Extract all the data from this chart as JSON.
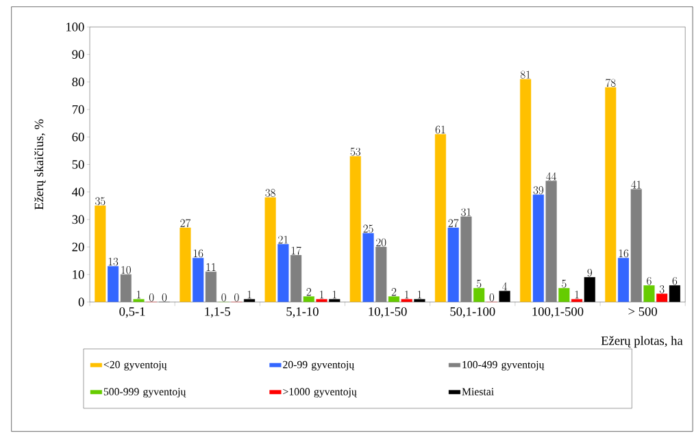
{
  "chart_data": {
    "type": "bar",
    "xlabel": "Ežerų plotas, ha",
    "ylabel": "Ežerų skaičius, %",
    "categories": [
      "0,5-1",
      "1,1-5",
      "5,1-10",
      "10,1-50",
      "50,1-100",
      "100,1-500",
      "> 500"
    ],
    "series": [
      {
        "name": "<20 gyventojų",
        "color": "#ffc000",
        "values": [
          35,
          27,
          38,
          53,
          61,
          81,
          78
        ]
      },
      {
        "name": "20-99 gyventojų",
        "color": "#3366ff",
        "values": [
          13,
          16,
          21,
          25,
          27,
          39,
          16
        ]
      },
      {
        "name": "100-499 gyventojų",
        "color": "#808080",
        "values": [
          10,
          11,
          17,
          20,
          31,
          44,
          41
        ]
      },
      {
        "name": "500-999 gyventojų",
        "color": "#66cc00",
        "values": [
          1,
          0,
          2,
          2,
          5,
          5,
          6
        ]
      },
      {
        "name": ">1000 gyventojų",
        "color": "#ff0000",
        "values": [
          0,
          0,
          1,
          1,
          0,
          1,
          3
        ]
      },
      {
        "name": "Miestai",
        "color": "#000000",
        "values": [
          0,
          1,
          1,
          1,
          4,
          9,
          6
        ]
      }
    ],
    "ylim": [
      0,
      100
    ],
    "yticks": [
      0,
      10,
      20,
      30,
      40,
      50,
      60,
      70,
      80,
      90,
      100
    ],
    "data_labels": true,
    "legend": "bottom",
    "grid": false
  }
}
